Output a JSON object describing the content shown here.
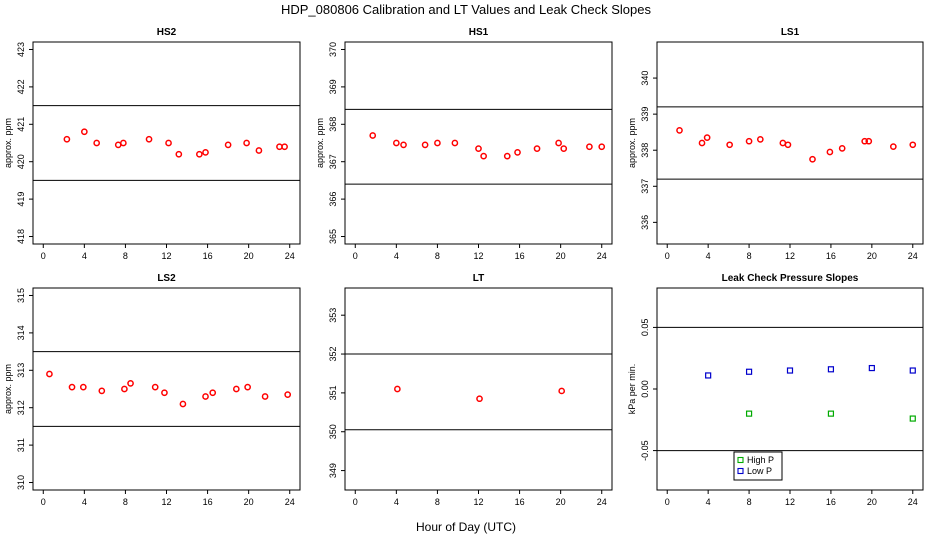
{
  "figure": {
    "title": "HDP_080806  Calibration and LT Values and Leak Check Slopes",
    "xlabel": "Hour of Day (UTC)"
  },
  "colors": {
    "calibration": "#ff0000",
    "high_p": "#00aa00",
    "low_p": "#0000cc",
    "axis": "#000000"
  },
  "chart_data": [
    {
      "id": "hs2",
      "type": "scatter",
      "title": "HS2",
      "ylabel": "approx. ppm",
      "xlim": [
        -1,
        25
      ],
      "ylim": [
        417.8,
        423.2
      ],
      "xticks": [
        0,
        4,
        8,
        12,
        16,
        20,
        24
      ],
      "yticks": [
        418,
        419,
        420,
        421,
        422,
        423
      ],
      "hlines": [
        419.5,
        421.5
      ],
      "series": [
        {
          "marker": "circle",
          "color": "#ff0000",
          "x": [
            2.3,
            4.0,
            5.2,
            7.3,
            7.8,
            10.3,
            12.2,
            13.2,
            15.2,
            15.8,
            18.0,
            19.8,
            21.0,
            23.0,
            23.5
          ],
          "y": [
            420.6,
            420.8,
            420.5,
            420.45,
            420.5,
            420.6,
            420.5,
            420.2,
            420.2,
            420.25,
            420.45,
            420.5,
            420.3,
            420.4,
            420.4
          ]
        }
      ]
    },
    {
      "id": "hs1",
      "type": "scatter",
      "title": "HS1",
      "ylabel": "approx. ppm",
      "xlim": [
        -1,
        25
      ],
      "ylim": [
        364.8,
        370.2
      ],
      "xticks": [
        0,
        4,
        8,
        12,
        16,
        20,
        24
      ],
      "yticks": [
        365,
        366,
        367,
        368,
        369,
        370
      ],
      "hlines": [
        366.4,
        368.4
      ],
      "series": [
        {
          "marker": "circle",
          "color": "#ff0000",
          "x": [
            1.7,
            4.0,
            4.7,
            6.8,
            8.0,
            9.7,
            12.0,
            12.5,
            14.8,
            15.8,
            17.7,
            19.8,
            20.3,
            22.8,
            24.0
          ],
          "y": [
            367.7,
            367.5,
            367.45,
            367.45,
            367.5,
            367.5,
            367.35,
            367.15,
            367.15,
            367.25,
            367.35,
            367.5,
            367.35,
            367.4,
            367.4
          ]
        }
      ]
    },
    {
      "id": "ls1",
      "type": "scatter",
      "title": "LS1",
      "ylabel": "approx. ppm",
      "xlim": [
        -1,
        25
      ],
      "ylim": [
        335.4,
        341.0
      ],
      "xticks": [
        0,
        4,
        8,
        12,
        16,
        20,
        24
      ],
      "yticks": [
        336,
        337,
        338,
        339,
        340
      ],
      "hlines": [
        337.2,
        339.2
      ],
      "series": [
        {
          "marker": "circle",
          "color": "#ff0000",
          "x": [
            1.2,
            3.4,
            3.9,
            6.1,
            8.0,
            9.1,
            11.3,
            11.8,
            14.2,
            15.9,
            17.1,
            19.3,
            19.7,
            22.1,
            24.0
          ],
          "y": [
            338.55,
            338.2,
            338.35,
            338.15,
            338.25,
            338.3,
            338.2,
            338.15,
            337.75,
            337.95,
            338.05,
            338.25,
            338.25,
            338.1,
            338.15
          ]
        }
      ]
    },
    {
      "id": "ls2",
      "type": "scatter",
      "title": "LS2",
      "ylabel": "approx. ppm",
      "xlim": [
        -1,
        25
      ],
      "ylim": [
        309.8,
        315.2
      ],
      "xticks": [
        0,
        4,
        8,
        12,
        16,
        20,
        24
      ],
      "yticks": [
        310,
        311,
        312,
        313,
        314,
        315
      ],
      "hlines": [
        311.5,
        313.5
      ],
      "series": [
        {
          "marker": "circle",
          "color": "#ff0000",
          "x": [
            0.6,
            2.8,
            3.9,
            5.7,
            7.9,
            8.5,
            10.9,
            11.8,
            13.6,
            15.8,
            16.5,
            18.8,
            19.9,
            21.6,
            23.8
          ],
          "y": [
            312.9,
            312.55,
            312.55,
            312.45,
            312.5,
            312.65,
            312.55,
            312.4,
            312.1,
            312.3,
            312.4,
            312.5,
            312.55,
            312.3,
            312.35
          ]
        }
      ]
    },
    {
      "id": "lt",
      "type": "scatter",
      "title": "LT",
      "ylabel": "",
      "xlim": [
        -1,
        25
      ],
      "ylim": [
        348.5,
        353.7
      ],
      "xticks": [
        0,
        4,
        8,
        12,
        16,
        20,
        24
      ],
      "yticks": [
        349,
        350,
        351,
        352,
        353
      ],
      "hlines": [
        350.05,
        352.0
      ],
      "series": [
        {
          "marker": "circle",
          "color": "#ff0000",
          "x": [
            4.1,
            12.1,
            20.1
          ],
          "y": [
            351.1,
            350.85,
            351.05
          ]
        }
      ]
    },
    {
      "id": "leak",
      "type": "scatter",
      "title": "Leak Check Pressure Slopes",
      "ylabel": "kPa per min.",
      "xlim": [
        -1,
        25
      ],
      "ylim": [
        -0.082,
        0.082
      ],
      "xticks": [
        0,
        4,
        8,
        12,
        16,
        20,
        24
      ],
      "yticks": [
        -0.05,
        0.0,
        0.05
      ],
      "ytick_labels": [
        "-0.05",
        "0.00",
        "0.05"
      ],
      "hlines": [
        -0.05,
        0.05
      ],
      "legend": {
        "position": "bottom-center",
        "items": [
          {
            "label": "High P",
            "color": "#00aa00",
            "marker": "square"
          },
          {
            "label": "Low P",
            "color": "#0000cc",
            "marker": "square"
          }
        ]
      },
      "series": [
        {
          "name": "High P",
          "marker": "square",
          "color": "#00aa00",
          "x": [
            8.0,
            16.0,
            24.0
          ],
          "y": [
            -0.02,
            -0.02,
            -0.024
          ]
        },
        {
          "name": "Low P",
          "marker": "square",
          "color": "#0000cc",
          "x": [
            4.0,
            8.0,
            12.0,
            16.0,
            20.0,
            24.0
          ],
          "y": [
            0.011,
            0.014,
            0.015,
            0.016,
            0.017,
            0.015
          ]
        }
      ]
    }
  ]
}
